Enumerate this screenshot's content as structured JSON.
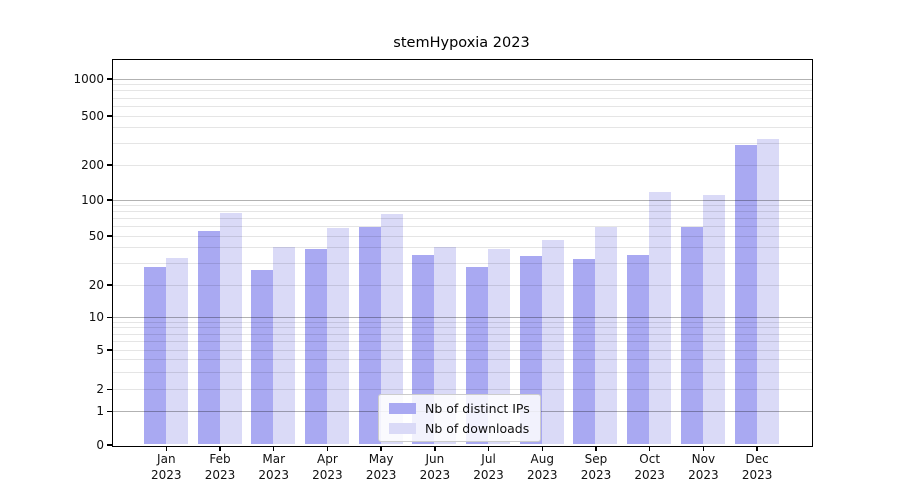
{
  "title": "stemHypoxia 2023",
  "colors": {
    "bar_distinct_ips": "#a9a9f2",
    "bar_downloads": "#dadaf7",
    "grid_major": "#b3b3b3",
    "grid_minor": "#e8e8e8",
    "spine": "#000000"
  },
  "chart_data": {
    "type": "bar",
    "title": "stemHypoxia 2023",
    "xlabel": "",
    "ylabel": "",
    "yscale": "symlog",
    "ylim": [
      0,
      1400
    ],
    "grid": true,
    "legend_position": "lower center",
    "yticks": [
      0,
      1,
      2,
      5,
      10,
      20,
      50,
      100,
      200,
      500,
      1000
    ],
    "categories": [
      "Jan 2023",
      "Feb 2023",
      "Mar 2023",
      "Apr 2023",
      "May 2023",
      "Jun 2023",
      "Jul 2023",
      "Aug 2023",
      "Sep 2023",
      "Oct 2023",
      "Nov 2023",
      "Dec 2023"
    ],
    "series": [
      {
        "name": "Nb of distinct IPs",
        "color": "#a9a9f2",
        "values": [
          28,
          55,
          26,
          39,
          59,
          35,
          28,
          34,
          32,
          35,
          59,
          290
        ]
      },
      {
        "name": "Nb of downloads",
        "color": "#dadaf7",
        "values": [
          33,
          77,
          40,
          58,
          75,
          40,
          39,
          46,
          59,
          115,
          110,
          320
        ]
      }
    ]
  }
}
